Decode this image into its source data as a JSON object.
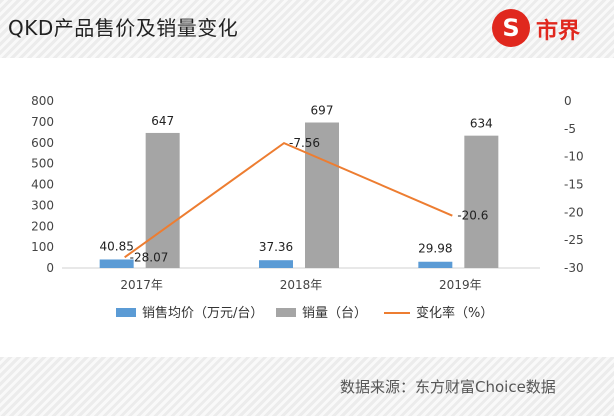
{
  "header": {
    "title": "QKD产品售价及销量变化"
  },
  "logo": {
    "glyph": "S",
    "text": "市界"
  },
  "footer": {
    "source": "数据来源：东方财富Choice数据"
  },
  "colors": {
    "price": "#5b9bd5",
    "volume": "#a5a5a5",
    "change": "#ed7d31",
    "logo": "#e0281e"
  },
  "chart_data": {
    "type": "bar",
    "categories": [
      "2017年",
      "2018年",
      "2019年"
    ],
    "series": [
      {
        "name": "销售均价（万元/台）",
        "type": "bar",
        "axis": "left",
        "values": [
          40.85,
          37.36,
          29.98
        ],
        "labels": [
          "40.85",
          "37.36",
          "29.98"
        ]
      },
      {
        "name": "销量（台）",
        "type": "bar",
        "axis": "left",
        "values": [
          647,
          697,
          634
        ],
        "labels": [
          "647",
          "697",
          "634"
        ]
      },
      {
        "name": "变化率（%）",
        "type": "line",
        "axis": "right",
        "values": [
          -28.07,
          -7.56,
          -20.6
        ],
        "labels": [
          "-28.07",
          "-7.56",
          "-20.6"
        ]
      }
    ],
    "y_left": {
      "range": [
        0,
        800
      ],
      "ticks": [
        "0",
        "100",
        "200",
        "300",
        "400",
        "500",
        "600",
        "700",
        "800"
      ]
    },
    "y_right": {
      "range": [
        -30,
        0
      ],
      "ticks": [
        "0",
        "-5",
        "-10",
        "-15",
        "-20",
        "-25",
        "-30"
      ]
    },
    "grid": false,
    "legend": "bottom"
  }
}
